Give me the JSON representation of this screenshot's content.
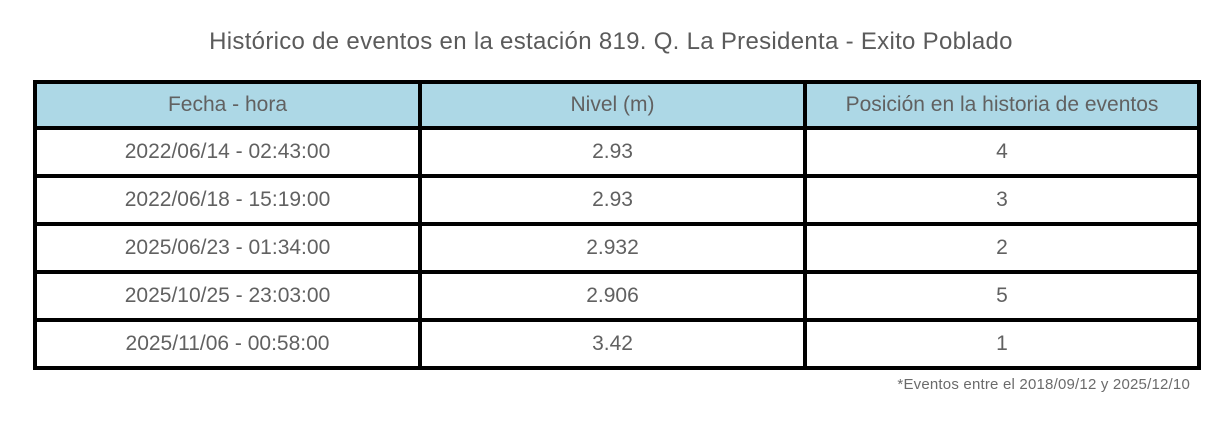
{
  "title": "Histórico de eventos en la estación 819. Q. La Presidenta - Exito Poblado",
  "footnote": "*Eventos entre el 2018/09/12 y 2025/12/10",
  "colors": {
    "header_bg": "#ADD8E6",
    "border": "#000000",
    "text": "#616161",
    "background": "#FFFFFF"
  },
  "chart_data": {
    "type": "table",
    "title": "Histórico de eventos en la estación 819. Q. La Presidenta - Exito Poblado",
    "columns": [
      "Fecha - hora",
      "Nivel (m)",
      "Posición en la historia de eventos"
    ],
    "rows": [
      [
        "2022/06/14 - 02:43:00",
        "2.93",
        "4"
      ],
      [
        "2022/06/18 - 15:19:00",
        "2.93",
        "3"
      ],
      [
        "2025/06/23 - 01:34:00",
        "2.932",
        "2"
      ],
      [
        "2025/10/25 - 23:03:00",
        "2.906",
        "5"
      ],
      [
        "2025/11/06 - 00:58:00",
        "3.42",
        "1"
      ]
    ],
    "annotation": "*Eventos entre el 2018/09/12 y 2025/12/10",
    "header_style": "light-blue fill, thick black grid borders",
    "layout": {
      "grid": true,
      "legend": "none"
    }
  }
}
